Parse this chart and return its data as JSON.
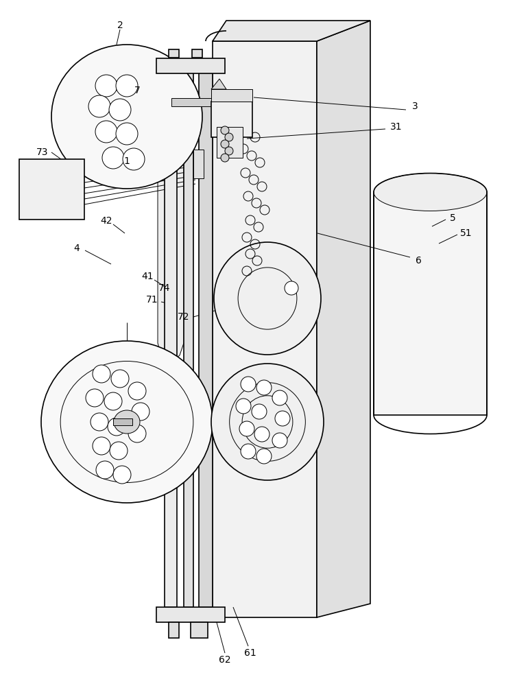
{
  "bg_color": "#ffffff",
  "lc": "#000000",
  "gc": "#999999",
  "lgc": "#cccccc",
  "lw_main": 1.2,
  "lw_thin": 0.7,
  "lw_thick": 1.8,
  "label_fs": 9
}
